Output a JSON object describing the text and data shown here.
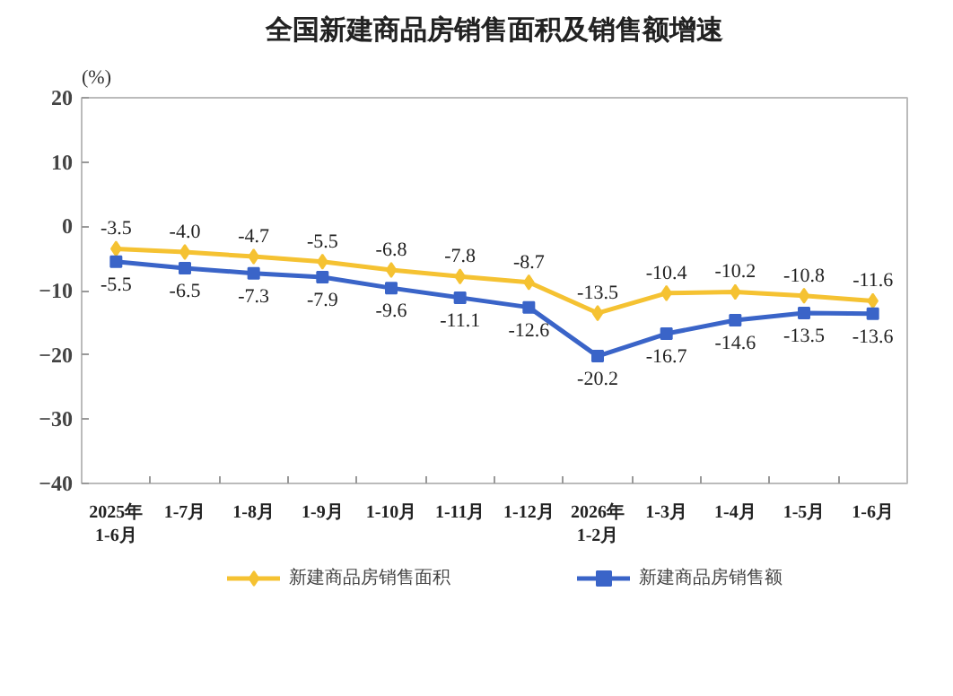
{
  "chart_data": {
    "type": "line",
    "title": "全国新建商品房销售面积及销售额增速",
    "ylabel": "(%)",
    "categories": [
      "2025年\n1-6月",
      "1-7月",
      "1-8月",
      "1-9月",
      "1-10月",
      "1-11月",
      "1-12月",
      "2026年\n1-2月",
      "1-3月",
      "1-4月",
      "1-5月",
      "1-6月"
    ],
    "series": [
      {
        "name": "新建商品房销售面积",
        "color": "#f5c232",
        "marker": "diamond",
        "values": [
          -3.5,
          -4.0,
          -4.7,
          -5.5,
          -6.8,
          -7.8,
          -8.7,
          -13.5,
          -10.4,
          -10.2,
          -10.8,
          -11.6
        ],
        "value_labels": [
          "-3.5",
          "-4.0",
          "-4.7",
          "-5.5",
          "-6.8",
          "-7.8",
          "-8.7",
          "-13.5",
          "-10.4",
          "-10.2",
          "-10.8",
          "-11.6"
        ]
      },
      {
        "name": "新建商品房销售额",
        "color": "#3a64c8",
        "marker": "square",
        "values": [
          -5.5,
          -6.5,
          -7.3,
          -7.9,
          -9.6,
          -11.1,
          -12.6,
          -20.2,
          -16.7,
          -14.6,
          -13.5,
          -13.6
        ],
        "value_labels": [
          "-5.5",
          "-6.5",
          "-7.3",
          "-7.9",
          "-9.6",
          "-11.1",
          "-12.6",
          "-20.2",
          "-16.7",
          "-14.6",
          "-13.5",
          "-13.6"
        ]
      }
    ],
    "ylim": [
      -40,
      20
    ],
    "yticks": [
      -40,
      -30,
      -20,
      -10,
      0,
      10,
      20
    ],
    "grid": false,
    "legend": "bottom",
    "line_style": "solid"
  }
}
